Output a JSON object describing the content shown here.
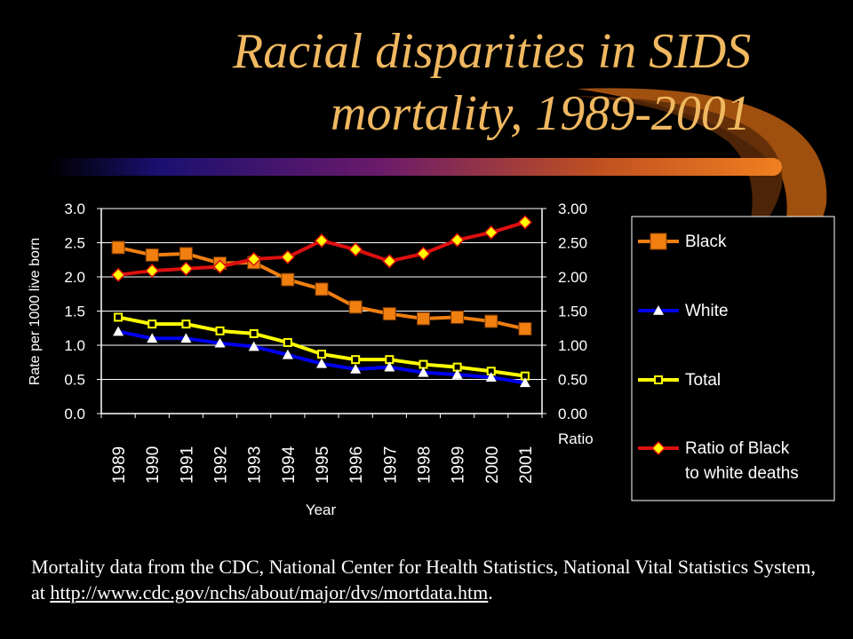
{
  "title": {
    "line1": "Racial disparities in SIDS",
    "line2": "mortality, 1989-2001"
  },
  "colors": {
    "background": "#000000",
    "title": "#f0b860",
    "black_series": "#f07f10",
    "white_series": "#0000ee",
    "total_series": "#ffff00",
    "ratio_series": "#dd1010",
    "ratio_marker": "#ffff00"
  },
  "chart_data": {
    "type": "line",
    "xlabel": "Year",
    "ylabel": "Rate per 1000 live born",
    "y2label": "Ratio",
    "categories": [
      "1989",
      "1990",
      "1991",
      "1992",
      "1993",
      "1994",
      "1995",
      "1996",
      "1997",
      "1998",
      "1999",
      "2000",
      "2001"
    ],
    "ylim": [
      0,
      3.0
    ],
    "yticks": [
      "0.0",
      "0.5",
      "1.0",
      "1.5",
      "2.0",
      "2.5",
      "3.0"
    ],
    "y2lim": [
      0,
      3.0
    ],
    "y2ticks": [
      "0.00",
      "0.50",
      "1.00",
      "1.50",
      "2.00",
      "2.50",
      "3.00"
    ],
    "grid": "horizontal",
    "legend_position": "right",
    "series": [
      {
        "name": "Black",
        "axis": "left",
        "marker": "square",
        "values": [
          2.43,
          2.32,
          2.34,
          2.2,
          2.21,
          1.96,
          1.82,
          1.56,
          1.46,
          1.39,
          1.41,
          1.35,
          1.24
        ]
      },
      {
        "name": "White",
        "axis": "left",
        "marker": "triangle",
        "values": [
          1.2,
          1.1,
          1.1,
          1.03,
          0.98,
          0.86,
          0.73,
          0.65,
          0.68,
          0.6,
          0.57,
          0.53,
          0.45
        ]
      },
      {
        "name": "Total",
        "axis": "left",
        "marker": "hollow-square",
        "values": [
          1.41,
          1.31,
          1.31,
          1.21,
          1.17,
          1.04,
          0.87,
          0.79,
          0.79,
          0.72,
          0.68,
          0.62,
          0.55
        ]
      },
      {
        "name": "Ratio of Black to white deaths",
        "axis": "right",
        "marker": "diamond",
        "values": [
          2.03,
          2.09,
          2.12,
          2.15,
          2.26,
          2.29,
          2.53,
          2.4,
          2.23,
          2.34,
          2.54,
          2.65,
          2.8
        ]
      }
    ],
    "legend": {
      "black": "Black",
      "white": "White",
      "total": "Total",
      "ratio_line1": "Ratio of Black",
      "ratio_line2": "to white deaths"
    }
  },
  "footnote": {
    "text": "Mortality data from the CDC, National Center for Health Statistics, National Vital Statistics System, at ",
    "link": "http://www.cdc.gov/nchs/about/major/dvs/mortdata.htm",
    "end": "."
  }
}
